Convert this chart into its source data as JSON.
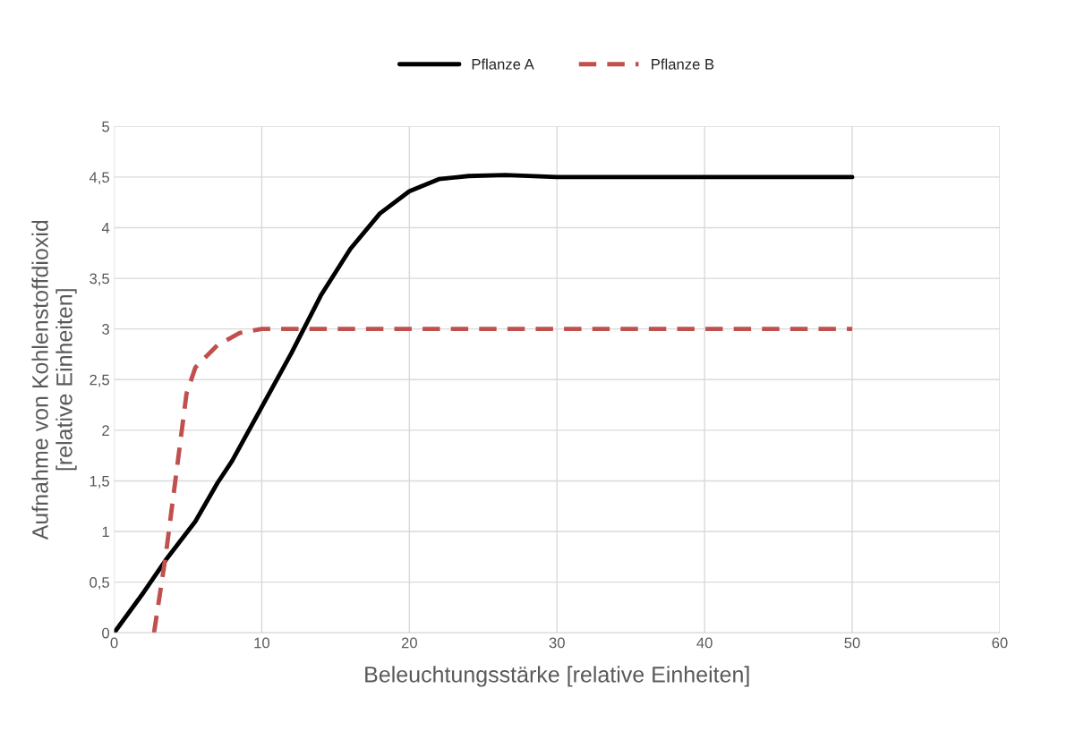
{
  "chart_data": {
    "type": "line",
    "xlabel": "Beleuchtungsstärke [relative Einheiten]",
    "ylabel": "Aufnahme von Kohlenstoffdioxid\n[relative Einheiten]",
    "xlim": [
      0,
      60
    ],
    "xticks": [
      0,
      10,
      20,
      30,
      40,
      50,
      60
    ],
    "ylim": [
      0,
      5
    ],
    "yticks": [
      {
        "value": 0,
        "label": "0"
      },
      {
        "value": 0.5,
        "label": "0,5"
      },
      {
        "value": 1,
        "label": "1"
      },
      {
        "value": 1.5,
        "label": "1,5"
      },
      {
        "value": 2,
        "label": "2"
      },
      {
        "value": 2.5,
        "label": "2,5"
      },
      {
        "value": 3,
        "label": "3"
      },
      {
        "value": 3.5,
        "label": "3,5"
      },
      {
        "value": 4,
        "label": "4"
      },
      {
        "value": 4.5,
        "label": "4,5"
      },
      {
        "value": 5,
        "label": "5"
      }
    ],
    "grid": true,
    "legend": "top",
    "marker": "none",
    "series": [
      {
        "name": "Pflanze A",
        "color": "#000000",
        "line_style": "solid",
        "x": [
          0,
          2,
          3.5,
          5.5,
          7,
          8,
          10,
          12,
          14,
          16,
          18,
          20,
          22,
          24,
          26.5,
          30,
          40,
          50
        ],
        "values": [
          0,
          0.4,
          0.72,
          1.1,
          1.48,
          1.7,
          2.23,
          2.76,
          3.33,
          3.79,
          4.14,
          4.36,
          4.48,
          4.51,
          4.52,
          4.5,
          4.5,
          4.5
        ]
      },
      {
        "name": "Pflanze B",
        "color": "#c0504d",
        "line_style": "dashed",
        "x": [
          2.7,
          3.5,
          4.9,
          5.5,
          7,
          8.5,
          10,
          20,
          30,
          40,
          50
        ],
        "values": [
          0,
          0.77,
          2.36,
          2.62,
          2.84,
          2.96,
          3.0,
          3.0,
          3.0,
          3.0,
          3.0
        ]
      }
    ]
  }
}
